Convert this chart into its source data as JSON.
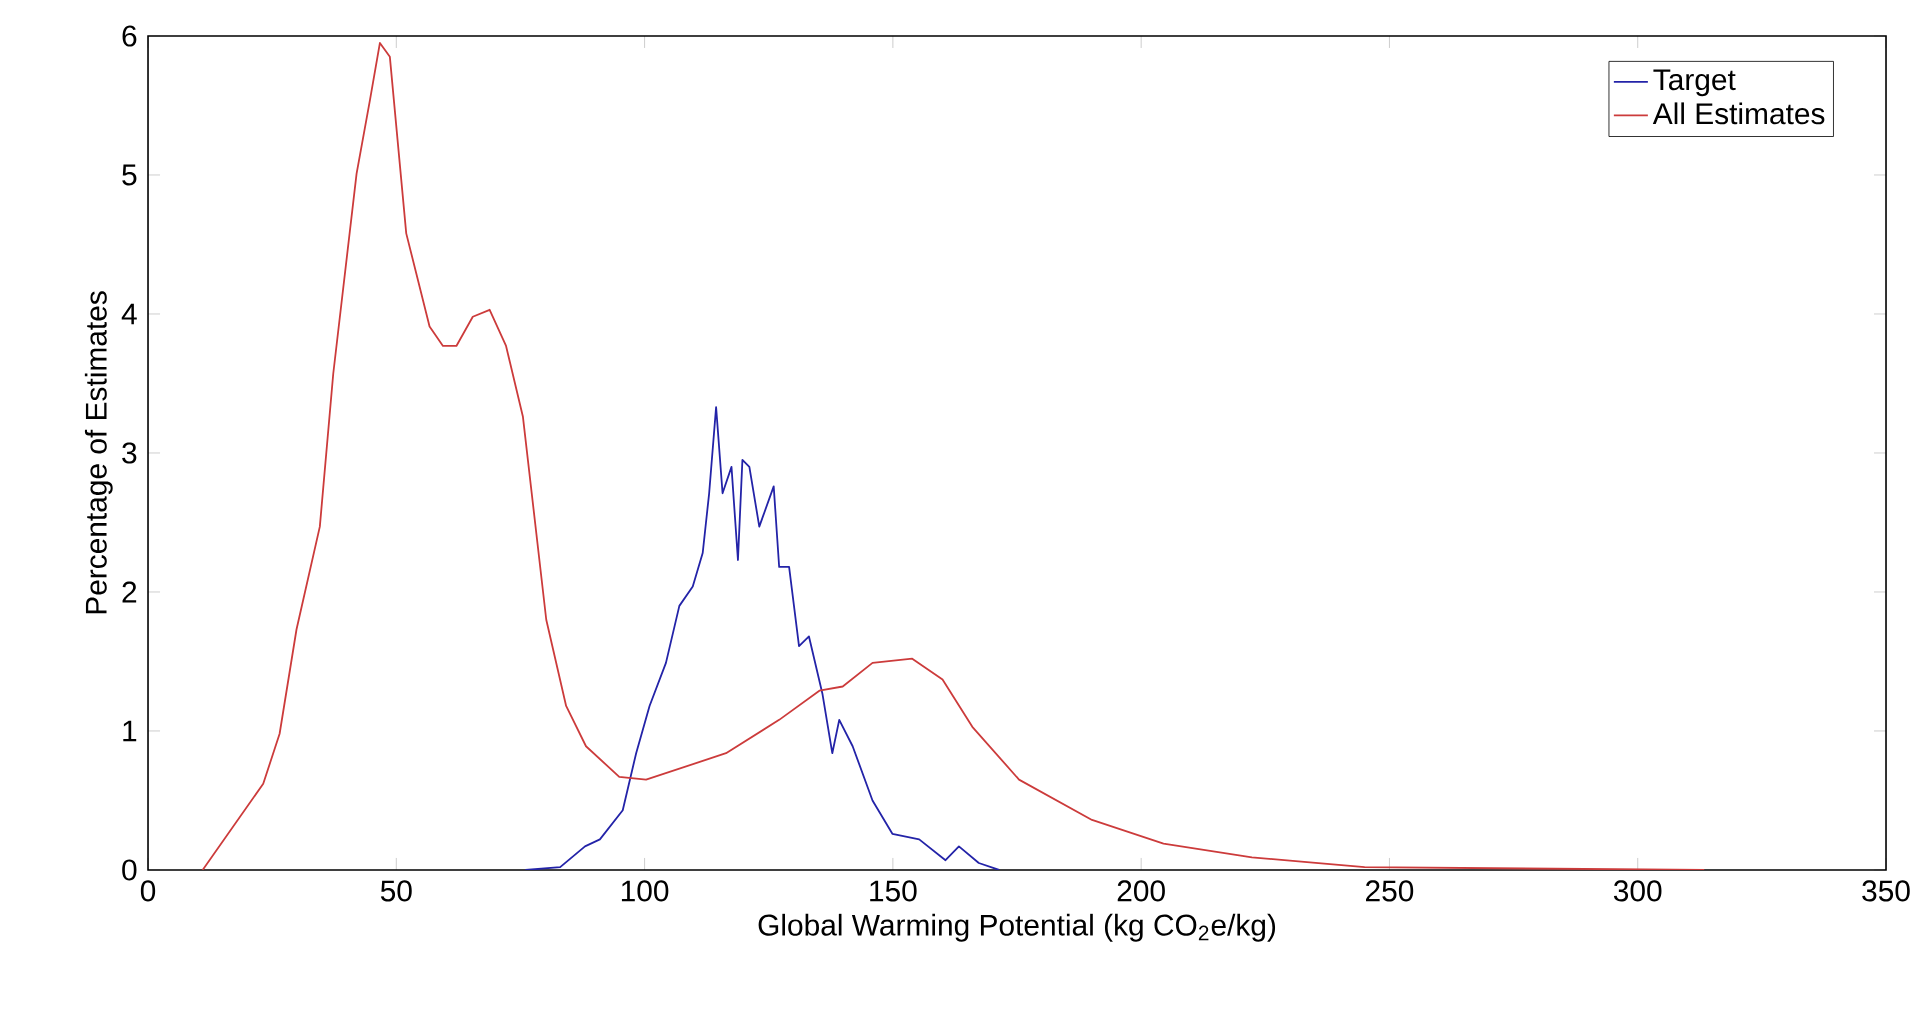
{
  "chart_data": {
    "type": "line",
    "xlabel": "Global Warming Potential (kg CO$_{2}$e/kg)",
    "ylabel": "Percentage of Estimates",
    "xlim": [
      0,
      350
    ],
    "ylim": [
      0,
      6
    ],
    "xticks": [
      0,
      50,
      100,
      150,
      200,
      250,
      300,
      350
    ],
    "yticks": [
      0,
      1,
      2,
      3,
      4,
      5,
      6
    ],
    "grid": false,
    "legend": "top right",
    "marker": "none",
    "line_style": "solid",
    "series": [
      {
        "name": "Target",
        "color": "#2323a8",
        "x": [
          76,
          83,
          88,
          91,
          95.6,
          98.3,
          101,
          104.3,
          107,
          109.7,
          111.7,
          113,
          114.4,
          115.7,
          117.5,
          118.8,
          119.7,
          121.1,
          123.1,
          126,
          127.1,
          129.1,
          131.1,
          133.1,
          135.8,
          137.8,
          139.2,
          141.9,
          145.9,
          149.9,
          155.3,
          160.6,
          163.3,
          167.3,
          171.4
        ],
        "values": [
          0,
          0.02,
          0.17,
          0.22,
          0.43,
          0.84,
          1.18,
          1.49,
          1.9,
          2.04,
          2.28,
          2.71,
          3.33,
          2.71,
          2.9,
          2.23,
          2.95,
          2.9,
          2.47,
          2.76,
          2.18,
          2.18,
          1.61,
          1.68,
          1.27,
          0.84,
          1.08,
          0.89,
          0.5,
          0.26,
          0.22,
          0.07,
          0.17,
          0.05,
          0
        ]
      },
      {
        "name": "All Estimates",
        "color": "#cc3b3b",
        "x": [
          11,
          23.2,
          26.5,
          29.9,
          34.6,
          37.3,
          42,
          44.7,
          46.7,
          48.7,
          52,
          56.7,
          59.4,
          62.1,
          65.4,
          68.8,
          72.1,
          75.5,
          80.2,
          84.2,
          88.2,
          94.9,
          100.3,
          116.4,
          127.1,
          135.2,
          139.9,
          145.9,
          153.9,
          160,
          166,
          175.4,
          190.1,
          204.5,
          222.3,
          235.7,
          245,
          313.4
        ],
        "values": [
          0,
          0.62,
          0.98,
          1.73,
          2.47,
          3.57,
          5.01,
          5.54,
          5.95,
          5.85,
          4.58,
          3.91,
          3.77,
          3.77,
          3.98,
          4.03,
          3.77,
          3.26,
          1.8,
          1.18,
          0.89,
          0.67,
          0.65,
          0.84,
          1.08,
          1.29,
          1.32,
          1.49,
          1.52,
          1.37,
          1.03,
          0.65,
          0.36,
          0.19,
          0.09,
          0.05,
          0.02,
          0
        ]
      }
    ]
  }
}
